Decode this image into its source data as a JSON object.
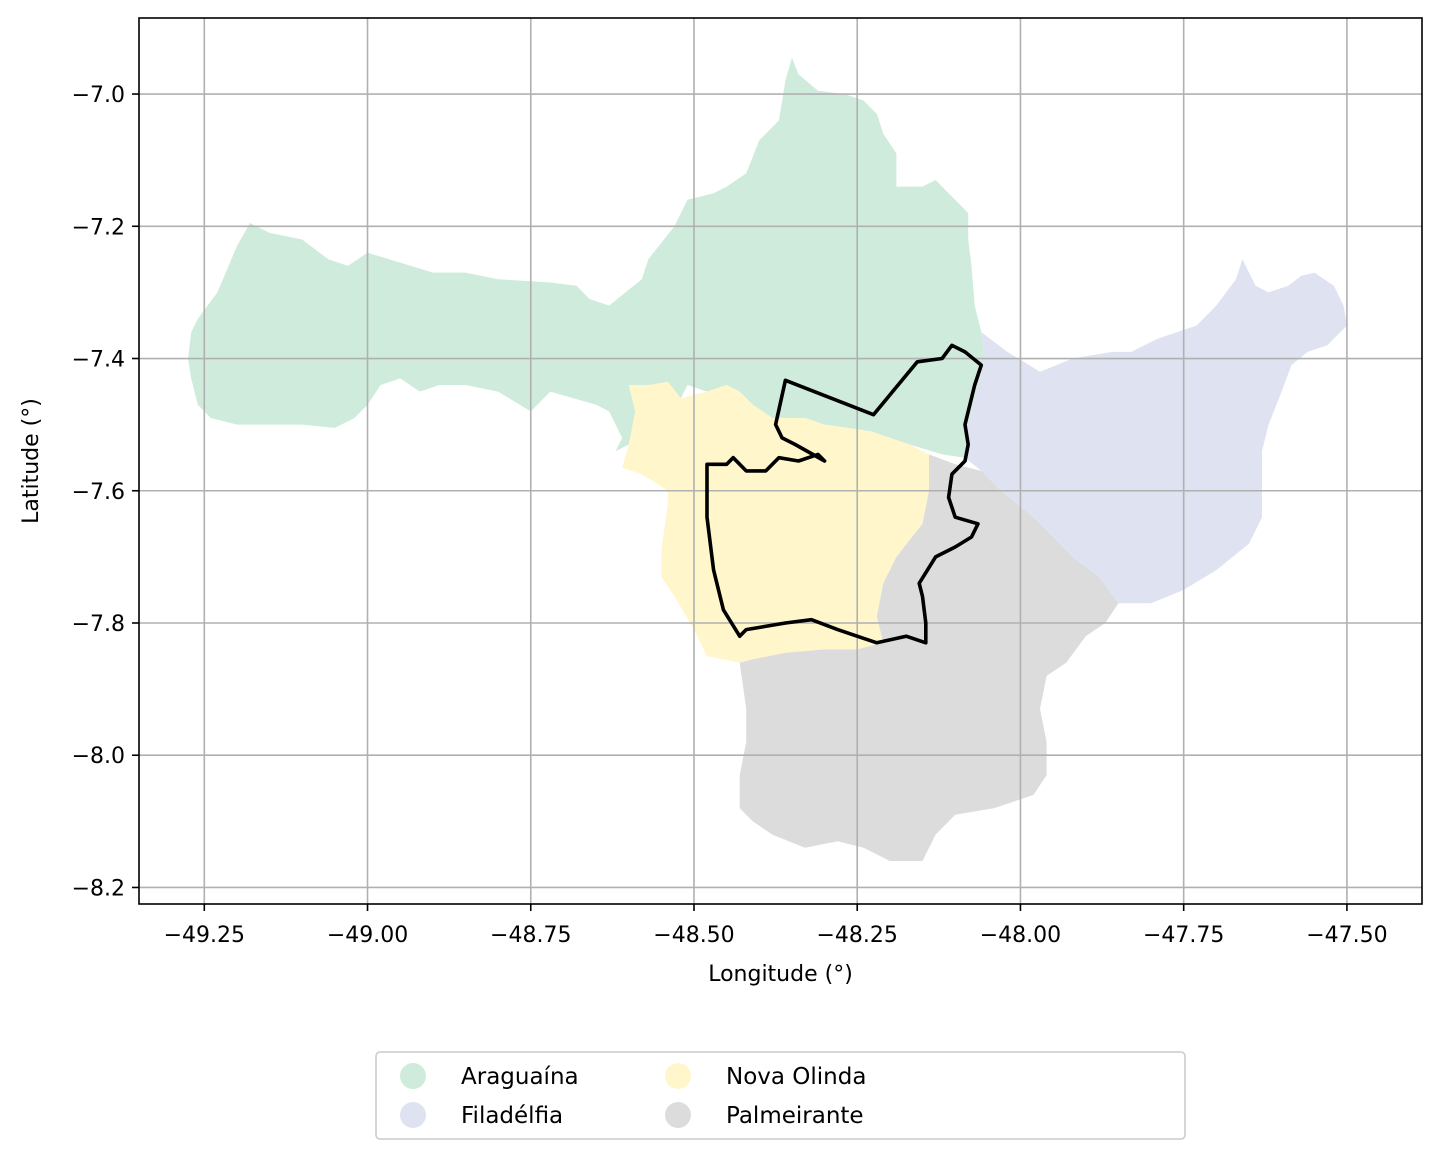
{
  "chart_data": {
    "type": "map",
    "xlabel": "Longitude (°)",
    "ylabel": "Latitude (°)",
    "xlim": [
      -49.35,
      -47.385
    ],
    "ylim": [
      -8.225,
      -6.885
    ],
    "grid": true,
    "x_ticks": [
      {
        "value": -49.25,
        "label": "−49.25"
      },
      {
        "value": -49.0,
        "label": "−49.00"
      },
      {
        "value": -48.75,
        "label": "−48.75"
      },
      {
        "value": -48.5,
        "label": "−48.50"
      },
      {
        "value": -48.25,
        "label": "−48.25"
      },
      {
        "value": -48.0,
        "label": "−48.00"
      },
      {
        "value": -47.75,
        "label": "−47.75"
      },
      {
        "value": -47.5,
        "label": "−47.50"
      }
    ],
    "y_ticks": [
      {
        "value": -7.0,
        "label": "−7.0"
      },
      {
        "value": -7.2,
        "label": "−7.2"
      },
      {
        "value": -7.4,
        "label": "−7.4"
      },
      {
        "value": -7.6,
        "label": "−7.6"
      },
      {
        "value": -7.8,
        "label": "−7.8"
      },
      {
        "value": -8.0,
        "label": "−8.0"
      },
      {
        "value": -8.2,
        "label": "−8.2"
      }
    ],
    "legend_placement": "bottom-center",
    "legend_columns": 3,
    "regions": [
      {
        "name": "Araguaína",
        "color": "#cfebdc",
        "polygon": [
          [
            -49.27,
            -7.36
          ],
          [
            -49.26,
            -7.34
          ],
          [
            -49.23,
            -7.3
          ],
          [
            -49.2,
            -7.23
          ],
          [
            -49.18,
            -7.195
          ],
          [
            -49.15,
            -7.21
          ],
          [
            -49.1,
            -7.22
          ],
          [
            -49.06,
            -7.25
          ],
          [
            -49.03,
            -7.26
          ],
          [
            -49.0,
            -7.24
          ],
          [
            -48.95,
            -7.255
          ],
          [
            -48.9,
            -7.27
          ],
          [
            -48.85,
            -7.27
          ],
          [
            -48.8,
            -7.28
          ],
          [
            -48.72,
            -7.285
          ],
          [
            -48.68,
            -7.29
          ],
          [
            -48.66,
            -7.31
          ],
          [
            -48.63,
            -7.32
          ],
          [
            -48.58,
            -7.28
          ],
          [
            -48.57,
            -7.25
          ],
          [
            -48.53,
            -7.2
          ],
          [
            -48.51,
            -7.16
          ],
          [
            -48.47,
            -7.15
          ],
          [
            -48.45,
            -7.14
          ],
          [
            -48.42,
            -7.12
          ],
          [
            -48.4,
            -7.07
          ],
          [
            -48.37,
            -7.04
          ],
          [
            -48.36,
            -6.98
          ],
          [
            -48.35,
            -6.945
          ],
          [
            -48.34,
            -6.97
          ],
          [
            -48.31,
            -6.995
          ],
          [
            -48.27,
            -7.0
          ],
          [
            -48.24,
            -7.01
          ],
          [
            -48.22,
            -7.03
          ],
          [
            -48.21,
            -7.06
          ],
          [
            -48.19,
            -7.09
          ],
          [
            -48.19,
            -7.14
          ],
          [
            -48.15,
            -7.14
          ],
          [
            -48.13,
            -7.13
          ],
          [
            -48.11,
            -7.15
          ],
          [
            -48.09,
            -7.17
          ],
          [
            -48.08,
            -7.18
          ],
          [
            -48.08,
            -7.22
          ],
          [
            -48.075,
            -7.26
          ],
          [
            -48.07,
            -7.32
          ],
          [
            -48.06,
            -7.36
          ],
          [
            -48.055,
            -7.4
          ],
          [
            -48.07,
            -7.46
          ],
          [
            -48.08,
            -7.5
          ],
          [
            -48.085,
            -7.55
          ],
          [
            -48.12,
            -7.545
          ],
          [
            -48.17,
            -7.53
          ],
          [
            -48.23,
            -7.51
          ],
          [
            -48.3,
            -7.5
          ],
          [
            -48.33,
            -7.49
          ],
          [
            -48.38,
            -7.49
          ],
          [
            -48.41,
            -7.47
          ],
          [
            -48.43,
            -7.45
          ],
          [
            -48.45,
            -7.44
          ],
          [
            -48.48,
            -7.45
          ],
          [
            -48.51,
            -7.44
          ],
          [
            -48.52,
            -7.46
          ],
          [
            -48.59,
            -7.5
          ],
          [
            -48.6,
            -7.53
          ],
          [
            -48.62,
            -7.54
          ],
          [
            -48.61,
            -7.52
          ],
          [
            -48.63,
            -7.48
          ],
          [
            -48.65,
            -7.47
          ],
          [
            -48.72,
            -7.45
          ],
          [
            -48.75,
            -7.48
          ],
          [
            -48.8,
            -7.45
          ],
          [
            -48.85,
            -7.44
          ],
          [
            -48.89,
            -7.44
          ],
          [
            -48.92,
            -7.45
          ],
          [
            -48.95,
            -7.43
          ],
          [
            -48.98,
            -7.44
          ],
          [
            -49.0,
            -7.47
          ],
          [
            -49.02,
            -7.49
          ],
          [
            -49.05,
            -7.505
          ],
          [
            -49.1,
            -7.5
          ],
          [
            -49.15,
            -7.5
          ],
          [
            -49.2,
            -7.5
          ],
          [
            -49.24,
            -7.49
          ],
          [
            -49.26,
            -7.47
          ],
          [
            -49.27,
            -7.43
          ],
          [
            -49.275,
            -7.4
          ]
        ]
      },
      {
        "name": "Filadélfia",
        "color": "#dfe2f1",
        "polygon": [
          [
            -48.06,
            -7.36
          ],
          [
            -48.02,
            -7.39
          ],
          [
            -47.97,
            -7.42
          ],
          [
            -47.92,
            -7.4
          ],
          [
            -47.86,
            -7.39
          ],
          [
            -47.83,
            -7.39
          ],
          [
            -47.79,
            -7.37
          ],
          [
            -47.73,
            -7.35
          ],
          [
            -47.7,
            -7.32
          ],
          [
            -47.67,
            -7.28
          ],
          [
            -47.66,
            -7.25
          ],
          [
            -47.64,
            -7.29
          ],
          [
            -47.62,
            -7.3
          ],
          [
            -47.59,
            -7.29
          ],
          [
            -47.57,
            -7.275
          ],
          [
            -47.55,
            -7.27
          ],
          [
            -47.52,
            -7.29
          ],
          [
            -47.505,
            -7.32
          ],
          [
            -47.5,
            -7.35
          ],
          [
            -47.53,
            -7.38
          ],
          [
            -47.56,
            -7.39
          ],
          [
            -47.585,
            -7.41
          ],
          [
            -47.6,
            -7.45
          ],
          [
            -47.62,
            -7.5
          ],
          [
            -47.63,
            -7.54
          ],
          [
            -47.63,
            -7.6
          ],
          [
            -47.63,
            -7.64
          ],
          [
            -47.65,
            -7.68
          ],
          [
            -47.7,
            -7.72
          ],
          [
            -47.75,
            -7.75
          ],
          [
            -47.8,
            -7.77
          ],
          [
            -47.85,
            -7.77
          ],
          [
            -47.88,
            -7.73
          ],
          [
            -47.92,
            -7.7
          ],
          [
            -47.95,
            -7.67
          ],
          [
            -47.98,
            -7.64
          ],
          [
            -48.03,
            -7.6
          ],
          [
            -48.06,
            -7.57
          ],
          [
            -48.085,
            -7.55
          ],
          [
            -48.08,
            -7.5
          ],
          [
            -48.07,
            -7.46
          ],
          [
            -48.055,
            -7.4
          ]
        ]
      },
      {
        "name": "Nova Olinda",
        "color": "#fff7cb",
        "polygon": [
          [
            -48.6,
            -7.44
          ],
          [
            -48.57,
            -7.44
          ],
          [
            -48.54,
            -7.435
          ],
          [
            -48.52,
            -7.46
          ],
          [
            -48.48,
            -7.45
          ],
          [
            -48.45,
            -7.44
          ],
          [
            -48.43,
            -7.45
          ],
          [
            -48.41,
            -7.47
          ],
          [
            -48.38,
            -7.49
          ],
          [
            -48.33,
            -7.49
          ],
          [
            -48.3,
            -7.5
          ],
          [
            -48.23,
            -7.51
          ],
          [
            -48.2,
            -7.52
          ],
          [
            -48.17,
            -7.53
          ],
          [
            -48.14,
            -7.545
          ],
          [
            -48.14,
            -7.6
          ],
          [
            -48.15,
            -7.65
          ],
          [
            -48.19,
            -7.7
          ],
          [
            -48.21,
            -7.74
          ],
          [
            -48.22,
            -7.79
          ],
          [
            -48.21,
            -7.83
          ],
          [
            -48.25,
            -7.84
          ],
          [
            -48.3,
            -7.84
          ],
          [
            -48.36,
            -7.845
          ],
          [
            -48.41,
            -7.855
          ],
          [
            -48.43,
            -7.86
          ],
          [
            -48.48,
            -7.85
          ],
          [
            -48.5,
            -7.81
          ],
          [
            -48.53,
            -7.76
          ],
          [
            -48.55,
            -7.73
          ],
          [
            -48.55,
            -7.69
          ],
          [
            -48.54,
            -7.62
          ],
          [
            -48.54,
            -7.6
          ],
          [
            -48.58,
            -7.575
          ],
          [
            -48.61,
            -7.565
          ],
          [
            -48.6,
            -7.53
          ],
          [
            -48.59,
            -7.48
          ]
        ]
      },
      {
        "name": "Palmeirante",
        "color": "#dcdcdc",
        "polygon": [
          [
            -48.14,
            -7.545
          ],
          [
            -48.1,
            -7.56
          ],
          [
            -48.06,
            -7.57
          ],
          [
            -48.03,
            -7.6
          ],
          [
            -47.98,
            -7.64
          ],
          [
            -47.95,
            -7.67
          ],
          [
            -47.92,
            -7.7
          ],
          [
            -47.88,
            -7.73
          ],
          [
            -47.85,
            -7.77
          ],
          [
            -47.87,
            -7.8
          ],
          [
            -47.9,
            -7.82
          ],
          [
            -47.93,
            -7.86
          ],
          [
            -47.96,
            -7.88
          ],
          [
            -47.97,
            -7.93
          ],
          [
            -47.96,
            -7.98
          ],
          [
            -47.96,
            -8.03
          ],
          [
            -47.98,
            -8.06
          ],
          [
            -48.04,
            -8.08
          ],
          [
            -48.1,
            -8.09
          ],
          [
            -48.13,
            -8.12
          ],
          [
            -48.15,
            -8.16
          ],
          [
            -48.2,
            -8.16
          ],
          [
            -48.24,
            -8.14
          ],
          [
            -48.28,
            -8.13
          ],
          [
            -48.33,
            -8.14
          ],
          [
            -48.38,
            -8.12
          ],
          [
            -48.41,
            -8.1
          ],
          [
            -48.43,
            -8.08
          ],
          [
            -48.43,
            -8.03
          ],
          [
            -48.42,
            -7.98
          ],
          [
            -48.42,
            -7.93
          ],
          [
            -48.43,
            -7.86
          ],
          [
            -48.41,
            -7.855
          ],
          [
            -48.36,
            -7.845
          ],
          [
            -48.3,
            -7.84
          ],
          [
            -48.25,
            -7.84
          ],
          [
            -48.21,
            -7.83
          ],
          [
            -48.22,
            -7.79
          ],
          [
            -48.21,
            -7.74
          ],
          [
            -48.19,
            -7.7
          ],
          [
            -48.15,
            -7.65
          ],
          [
            -48.14,
            -7.6
          ]
        ]
      }
    ],
    "outline": {
      "color": "#000000",
      "polygon": [
        [
          -48.375,
          -7.5
        ],
        [
          -48.36,
          -7.433
        ],
        [
          -48.225,
          -7.485
        ],
        [
          -48.158,
          -7.405
        ],
        [
          -48.12,
          -7.4
        ],
        [
          -48.105,
          -7.38
        ],
        [
          -48.085,
          -7.39
        ],
        [
          -48.06,
          -7.41
        ],
        [
          -48.07,
          -7.44
        ],
        [
          -48.085,
          -7.5
        ],
        [
          -48.08,
          -7.53
        ],
        [
          -48.085,
          -7.555
        ],
        [
          -48.105,
          -7.575
        ],
        [
          -48.11,
          -7.61
        ],
        [
          -48.1,
          -7.64
        ],
        [
          -48.065,
          -7.65
        ],
        [
          -48.075,
          -7.67
        ],
        [
          -48.1,
          -7.685
        ],
        [
          -48.13,
          -7.7
        ],
        [
          -48.155,
          -7.74
        ],
        [
          -48.15,
          -7.76
        ],
        [
          -48.145,
          -7.8
        ],
        [
          -48.145,
          -7.83
        ],
        [
          -48.175,
          -7.82
        ],
        [
          -48.22,
          -7.83
        ],
        [
          -48.28,
          -7.81
        ],
        [
          -48.32,
          -7.795
        ],
        [
          -48.36,
          -7.8
        ],
        [
          -48.42,
          -7.81
        ],
        [
          -48.43,
          -7.82
        ],
        [
          -48.455,
          -7.78
        ],
        [
          -48.47,
          -7.72
        ],
        [
          -48.48,
          -7.64
        ],
        [
          -48.48,
          -7.56
        ],
        [
          -48.45,
          -7.56
        ],
        [
          -48.44,
          -7.55
        ],
        [
          -48.42,
          -7.57
        ],
        [
          -48.39,
          -7.57
        ],
        [
          -48.37,
          -7.55
        ],
        [
          -48.34,
          -7.555
        ],
        [
          -48.31,
          -7.545
        ],
        [
          -48.3,
          -7.555
        ],
        [
          -48.345,
          -7.53
        ],
        [
          -48.365,
          -7.52
        ]
      ]
    }
  }
}
